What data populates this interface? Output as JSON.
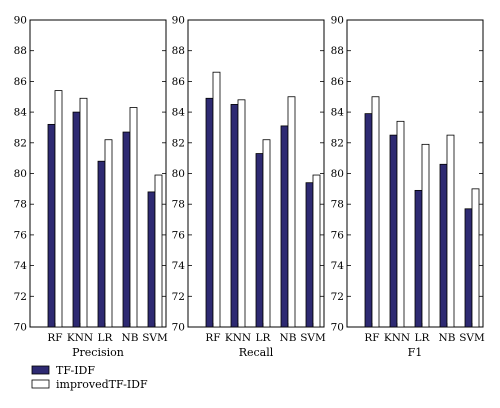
{
  "chart_data": {
    "type": "bar",
    "categories": [
      "RF",
      "KNN",
      "LR",
      "NB",
      "SVM"
    ],
    "ylim": [
      70,
      90
    ],
    "yticks": [
      70,
      72,
      74,
      76,
      78,
      80,
      82,
      84,
      86,
      88,
      90
    ],
    "grid": false,
    "legend": {
      "placement": "bottom-left",
      "entries": [
        "TF-IDF",
        "improvedTF-IDF"
      ]
    },
    "colors": {
      "TF-IDF": "#2e2a72",
      "improvedTF-IDF": "#ffffff",
      "edge": "#000000"
    },
    "panels": [
      {
        "xlabel": "Precision",
        "series": [
          {
            "name": "TF-IDF",
            "values": [
              83.2,
              84.0,
              80.8,
              82.7,
              78.8
            ]
          },
          {
            "name": "improvedTF-IDF",
            "values": [
              85.4,
              84.9,
              82.2,
              84.3,
              79.9
            ]
          }
        ]
      },
      {
        "xlabel": "Recall",
        "series": [
          {
            "name": "TF-IDF",
            "values": [
              84.9,
              84.5,
              81.3,
              83.1,
              79.4
            ]
          },
          {
            "name": "improvedTF-IDF",
            "values": [
              86.6,
              84.8,
              82.2,
              85.0,
              79.9
            ]
          }
        ]
      },
      {
        "xlabel": "F1",
        "series": [
          {
            "name": "TF-IDF",
            "values": [
              83.9,
              82.5,
              78.9,
              80.6,
              77.7
            ]
          },
          {
            "name": "improvedTF-IDF",
            "values": [
              85.0,
              83.4,
              81.9,
              82.5,
              79.0
            ]
          }
        ]
      }
    ]
  }
}
